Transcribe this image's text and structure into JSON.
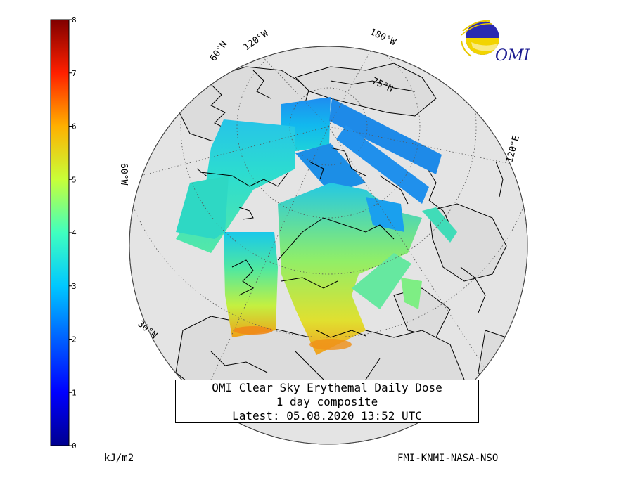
{
  "title": {
    "line1": "OMI Clear Sky Erythemal Daily Dose",
    "line2": "1 day composite",
    "line3": "Latest: 05.08.2020 13:52 UTC"
  },
  "colorbar": {
    "units": "kJ/m2",
    "min": 0,
    "max": 8,
    "ticks": [
      "0",
      "1",
      "2",
      "3",
      "4",
      "5",
      "6",
      "7",
      "8"
    ],
    "colormap": "jet"
  },
  "credit": "FMI-KNMI-NASA-NSO",
  "logo_text": "OMI",
  "map_labels": {
    "lat_60": "60°N",
    "lon_120w": "120°W",
    "lon_180": "180°W",
    "lat_75": "75°N",
    "lon_120e": "120°E",
    "lon_60w": "60°W",
    "lat_30": "30°N"
  },
  "colors": {
    "ocean": "#e4e4e4",
    "land_outline": "#000000",
    "grid": "#555555"
  }
}
